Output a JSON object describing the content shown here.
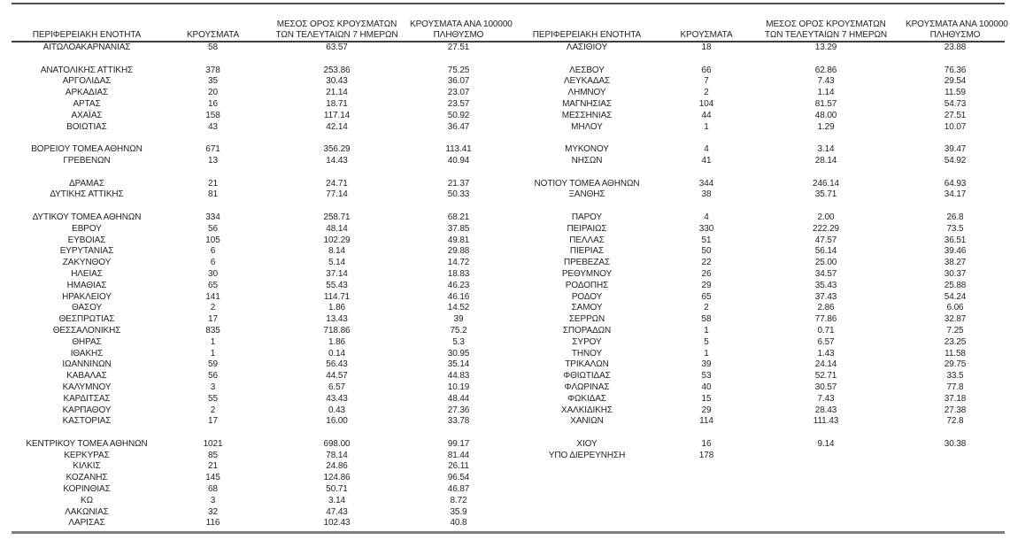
{
  "page": {
    "background": "#ffffff",
    "text_color": "#1f1f1f",
    "top_line_color": "#4f4f4f",
    "header_line_color": "#3f3f3f",
    "bottom_line_color": "#808080"
  },
  "table": {
    "column_headers": [
      {
        "line1": "ΠΕΡΙΦΕΡΕΙΑΚΗ ΕΝΟΤΗΤΑ",
        "line2": ""
      },
      {
        "line1": "ΚΡΟΥΣΜΑΤΑ",
        "line2": ""
      },
      {
        "line1": "ΜΕΣΟΣ ΟΡΟΣ ΚΡΟΥΣΜΑΤΩΝ",
        "line2": "ΤΩΝ ΤΕΛΕΥΤΑΙΩΝ 7 ΗΜΕΡΩΝ"
      },
      {
        "line1": "ΚΡΟΥΣΜΑΤΑ ΑΝΑ 100000",
        "line2": "ΠΛΗΘΥΣΜΟ"
      }
    ],
    "left_rows": [
      {
        "name": "ΑΙΤΩΛΟΑΚΑΡΝΑΝΙΑΣ",
        "cases": "58",
        "avg7": "63.57",
        "per100k": "27.51"
      },
      null,
      {
        "name": "ΑΝΑΤΟΛΙΚΗΣ ΑΤΤΙΚΗΣ",
        "cases": "378",
        "avg7": "253.86",
        "per100k": "75.25"
      },
      {
        "name": "ΑΡΓΟΛΙΔΑΣ",
        "cases": "35",
        "avg7": "30.43",
        "per100k": "36.07"
      },
      {
        "name": "ΑΡΚΑΔΙΑΣ",
        "cases": "20",
        "avg7": "21.14",
        "per100k": "23.07"
      },
      {
        "name": "ΑΡΤΑΣ",
        "cases": "16",
        "avg7": "18.71",
        "per100k": "23.57"
      },
      {
        "name": "ΑΧΑΪΑΣ",
        "cases": "158",
        "avg7": "117.14",
        "per100k": "50.92"
      },
      {
        "name": "ΒΟΙΩΤΙΑΣ",
        "cases": "43",
        "avg7": "42.14",
        "per100k": "36.47"
      },
      null,
      {
        "name": "ΒΟΡΕΙΟΥ ΤΟΜΕΑ ΑΘΗΝΩΝ",
        "cases": "671",
        "avg7": "356.29",
        "per100k": "113.41"
      },
      {
        "name": "ΓΡΕΒΕΝΩΝ",
        "cases": "13",
        "avg7": "14.43",
        "per100k": "40.94"
      },
      null,
      {
        "name": "ΔΡΑΜΑΣ",
        "cases": "21",
        "avg7": "24.71",
        "per100k": "21.37"
      },
      {
        "name": "ΔΥΤΙΚΗΣ ΑΤΤΙΚΗΣ",
        "cases": "81",
        "avg7": "77.14",
        "per100k": "50.33"
      },
      null,
      {
        "name": "ΔΥΤΙΚΟΥ ΤΟΜΕΑ ΑΘΗΝΩΝ",
        "cases": "334",
        "avg7": "258.71",
        "per100k": "68.21"
      },
      {
        "name": "ΕΒΡΟΥ",
        "cases": "56",
        "avg7": "48.14",
        "per100k": "37.85"
      },
      {
        "name": "ΕΥΒΟΙΑΣ",
        "cases": "105",
        "avg7": "102.29",
        "per100k": "49.81"
      },
      {
        "name": "ΕΥΡΥΤΑΝΙΑΣ",
        "cases": "6",
        "avg7": "8.14",
        "per100k": "29.88"
      },
      {
        "name": "ΖΑΚΥΝΘΟΥ",
        "cases": "6",
        "avg7": "5.14",
        "per100k": "14.72"
      },
      {
        "name": "ΗΛΕΙΑΣ",
        "cases": "30",
        "avg7": "37.14",
        "per100k": "18.83"
      },
      {
        "name": "ΗΜΑΘΙΑΣ",
        "cases": "65",
        "avg7": "55.43",
        "per100k": "46.23"
      },
      {
        "name": "ΗΡΑΚΛΕΙΟΥ",
        "cases": "141",
        "avg7": "114.71",
        "per100k": "46.16"
      },
      {
        "name": "ΘΑΣΟΥ",
        "cases": "2",
        "avg7": "1.86",
        "per100k": "14.52"
      },
      {
        "name": "ΘΕΣΠΡΩΤΙΑΣ",
        "cases": "17",
        "avg7": "13.43",
        "per100k": "39"
      },
      {
        "name": "ΘΕΣΣΑΛΟΝΙΚΗΣ",
        "cases": "835",
        "avg7": "718.86",
        "per100k": "75.2"
      },
      {
        "name": "ΘΗΡΑΣ",
        "cases": "1",
        "avg7": "1.86",
        "per100k": "5.3"
      },
      {
        "name": "ΙΘΑΚΗΣ",
        "cases": "1",
        "avg7": "0.14",
        "per100k": "30.95"
      },
      {
        "name": "ΙΩΑΝΝΙΝΩΝ",
        "cases": "59",
        "avg7": "56.43",
        "per100k": "35.14"
      },
      {
        "name": "ΚΑΒΑΛΑΣ",
        "cases": "56",
        "avg7": "44.57",
        "per100k": "44.83"
      },
      {
        "name": "ΚΑΛΥΜΝΟΥ",
        "cases": "3",
        "avg7": "6.57",
        "per100k": "10.19"
      },
      {
        "name": "ΚΑΡΔΙΤΣΑΣ",
        "cases": "55",
        "avg7": "43.43",
        "per100k": "48.44"
      },
      {
        "name": "ΚΑΡΠΑΘΟΥ",
        "cases": "2",
        "avg7": "0.43",
        "per100k": "27.36"
      },
      {
        "name": "ΚΑΣΤΟΡΙΑΣ",
        "cases": "17",
        "avg7": "16.00",
        "per100k": "33.78"
      },
      null,
      {
        "name": "ΚΕΝΤΡΙΚΟΥ ΤΟΜΕΑ ΑΘΗΝΩΝ",
        "cases": "1021",
        "avg7": "698.00",
        "per100k": "99.17"
      },
      {
        "name": "ΚΕΡΚΥΡΑΣ",
        "cases": "85",
        "avg7": "78.14",
        "per100k": "81.44"
      },
      {
        "name": "ΚΙΛΚΙΣ",
        "cases": "21",
        "avg7": "24.86",
        "per100k": "26.11"
      },
      {
        "name": "ΚΟΖΑΝΗΣ",
        "cases": "145",
        "avg7": "124.86",
        "per100k": "96.54"
      },
      {
        "name": "ΚΟΡΙΝΘΙΑΣ",
        "cases": "68",
        "avg7": "50.71",
        "per100k": "46.87"
      },
      {
        "name": "ΚΩ",
        "cases": "3",
        "avg7": "3.14",
        "per100k": "8.72"
      },
      {
        "name": "ΛΑΚΩΝΙΑΣ",
        "cases": "32",
        "avg7": "47.43",
        "per100k": "35.9"
      },
      {
        "name": "ΛΑΡΙΣΑΣ",
        "cases": "116",
        "avg7": "102.43",
        "per100k": "40.8"
      }
    ],
    "right_rows": [
      {
        "name": "ΛΑΣΙΘΙΟΥ",
        "cases": "18",
        "avg7": "13.29",
        "per100k": "23.88"
      },
      null,
      {
        "name": "ΛΕΣΒΟΥ",
        "cases": "66",
        "avg7": "62.86",
        "per100k": "76.36"
      },
      {
        "name": "ΛΕΥΚΑΔΑΣ",
        "cases": "7",
        "avg7": "7.43",
        "per100k": "29.54"
      },
      {
        "name": "ΛΗΜΝΟΥ",
        "cases": "2",
        "avg7": "1.14",
        "per100k": "11.59"
      },
      {
        "name": "ΜΑΓΝΗΣΙΑΣ",
        "cases": "104",
        "avg7": "81.57",
        "per100k": "54.73"
      },
      {
        "name": "ΜΕΣΣΗΝΙΑΣ",
        "cases": "44",
        "avg7": "48.00",
        "per100k": "27.51"
      },
      {
        "name": "ΜΗΛΟΥ",
        "cases": "1",
        "avg7": "1.29",
        "per100k": "10.07"
      },
      null,
      {
        "name": "ΜΥΚΟΝΟΥ",
        "cases": "4",
        "avg7": "3.14",
        "per100k": "39.47"
      },
      {
        "name": "ΝΗΣΩΝ",
        "cases": "41",
        "avg7": "28.14",
        "per100k": "54.92"
      },
      null,
      {
        "name": "ΝΟΤΙΟΥ ΤΟΜΕΑ ΑΘΗΝΩΝ",
        "cases": "344",
        "avg7": "246.14",
        "per100k": "64.93"
      },
      {
        "name": "ΞΑΝΘΗΣ",
        "cases": "38",
        "avg7": "35.71",
        "per100k": "34.17"
      },
      null,
      {
        "name": "ΠΑΡΟΥ",
        "cases": "4",
        "avg7": "2.00",
        "per100k": "26.8"
      },
      {
        "name": "ΠΕΙΡΑΙΩΣ",
        "cases": "330",
        "avg7": "222.29",
        "per100k": "73.5"
      },
      {
        "name": "ΠΕΛΛΑΣ",
        "cases": "51",
        "avg7": "47.57",
        "per100k": "36.51"
      },
      {
        "name": "ΠΙΕΡΙΑΣ",
        "cases": "50",
        "avg7": "56.14",
        "per100k": "39.46"
      },
      {
        "name": "ΠΡΕΒΕΖΑΣ",
        "cases": "22",
        "avg7": "25.00",
        "per100k": "38.27"
      },
      {
        "name": "ΡΕΘΥΜΝΟΥ",
        "cases": "26",
        "avg7": "34.57",
        "per100k": "30.37"
      },
      {
        "name": "ΡΟΔΟΠΗΣ",
        "cases": "29",
        "avg7": "35.43",
        "per100k": "25.88"
      },
      {
        "name": "ΡΟΔΟΥ",
        "cases": "65",
        "avg7": "37.43",
        "per100k": "54.24"
      },
      {
        "name": "ΣΑΜΟΥ",
        "cases": "2",
        "avg7": "2.86",
        "per100k": "6.06"
      },
      {
        "name": "ΣΕΡΡΩΝ",
        "cases": "58",
        "avg7": "77.86",
        "per100k": "32.87"
      },
      {
        "name": "ΣΠΟΡΑΔΩΝ",
        "cases": "1",
        "avg7": "0.71",
        "per100k": "7.25"
      },
      {
        "name": "ΣΥΡΟΥ",
        "cases": "5",
        "avg7": "6.57",
        "per100k": "23.25"
      },
      {
        "name": "ΤΗΝΟΥ",
        "cases": "1",
        "avg7": "1.43",
        "per100k": "11.58"
      },
      {
        "name": "ΤΡΙΚΑΛΩΝ",
        "cases": "39",
        "avg7": "24.14",
        "per100k": "29.75"
      },
      {
        "name": "ΦΘΙΩΤΙΔΑΣ",
        "cases": "53",
        "avg7": "52.71",
        "per100k": "33.5"
      },
      {
        "name": "ΦΛΩΡΙΝΑΣ",
        "cases": "40",
        "avg7": "30.57",
        "per100k": "77.8"
      },
      {
        "name": "ΦΩΚΙΔΑΣ",
        "cases": "15",
        "avg7": "7.43",
        "per100k": "37.18"
      },
      {
        "name": "ΧΑΛΚΙΔΙΚΗΣ",
        "cases": "29",
        "avg7": "28.43",
        "per100k": "27.38"
      },
      {
        "name": "ΧΑΝΙΩΝ",
        "cases": "114",
        "avg7": "111.43",
        "per100k": "72.8"
      },
      null,
      {
        "name": "ΧΙΟΥ",
        "cases": "16",
        "avg7": "9.14",
        "per100k": "30.38"
      },
      {
        "name": "ΥΠΟ ΔΙΕΡΕΥΝΗΣΗ",
        "cases": "178",
        "avg7": "",
        "per100k": ""
      },
      null,
      null,
      null,
      null,
      null,
      null
    ]
  }
}
